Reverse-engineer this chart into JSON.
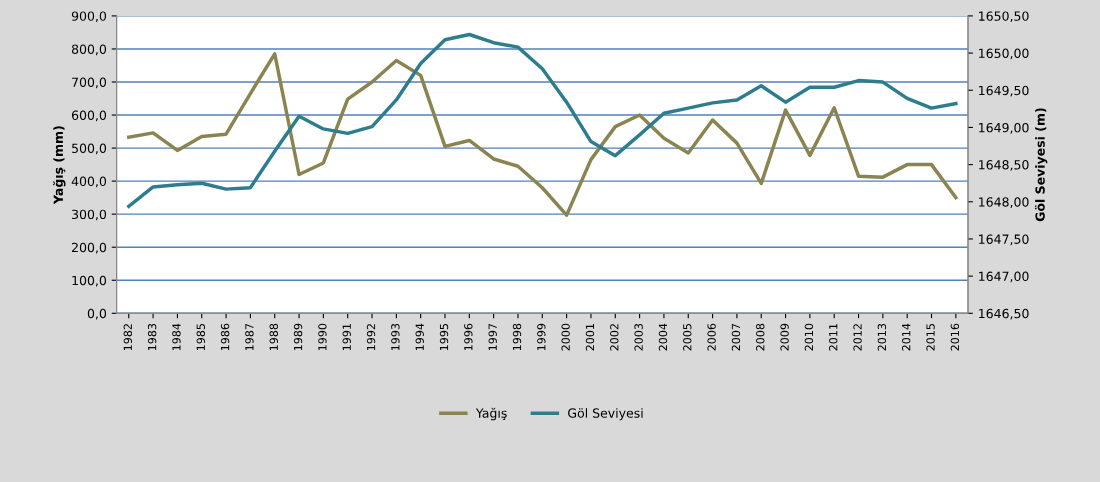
{
  "chart_data": {
    "type": "line",
    "categories": [
      "1982",
      "1983",
      "1984",
      "1985",
      "1986",
      "1987",
      "1988",
      "1989",
      "1990",
      "1991",
      "1992",
      "1993",
      "1994",
      "1995",
      "1996",
      "1997",
      "1998",
      "1999",
      "2000",
      "2001",
      "2002",
      "2003",
      "2004",
      "2005",
      "2006",
      "2007",
      "2008",
      "2009",
      "2010",
      "2011",
      "2012",
      "2013",
      "2014",
      "2015",
      "2016"
    ],
    "series": [
      {
        "name": "Yağış",
        "color": "#8a8450",
        "values": [
          533,
          546,
          493,
          535,
          542,
          665,
          785,
          420,
          455,
          648,
          700,
          765,
          720,
          505,
          523,
          467,
          445,
          380,
          297,
          465,
          565,
          600,
          530,
          485,
          585,
          515,
          393,
          615,
          478,
          622,
          415,
          412,
          450,
          450,
          350
        ]
      },
      {
        "name": "Göl Seviyesi",
        "color": "#2e7d8f",
        "axis": "y2",
        "values": [
          1647.94,
          1648.2,
          1648.23,
          1648.25,
          1648.17,
          1648.19,
          1648.68,
          1649.15,
          1648.98,
          1648.92,
          1649.01,
          1649.37,
          1649.86,
          1650.18,
          1650.25,
          1650.14,
          1650.08,
          1649.79,
          1649.34,
          1648.81,
          1648.62,
          1648.9,
          1649.19,
          1649.26,
          1649.33,
          1649.37,
          1649.56,
          1649.34,
          1649.54,
          1649.54,
          1649.63,
          1649.61,
          1649.39,
          1649.26,
          1649.32
        ]
      }
    ],
    "ylabel": "Yağış (mm)",
    "y2label": "Göl Seviyesi (m)",
    "ylim": [
      0,
      900
    ],
    "yticks": [
      {
        "value": 0,
        "label": "0,0"
      },
      {
        "value": 100,
        "label": "100,0"
      },
      {
        "value": 200,
        "label": "200,0"
      },
      {
        "value": 300,
        "label": "300,0"
      },
      {
        "value": 400,
        "label": "400,0"
      },
      {
        "value": 500,
        "label": "500,0"
      },
      {
        "value": 600,
        "label": "600,0"
      },
      {
        "value": 700,
        "label": "700,0"
      },
      {
        "value": 800,
        "label": "800,0"
      },
      {
        "value": 900,
        "label": "900,0"
      }
    ],
    "y2lim": [
      1646.5,
      1650.5
    ],
    "y2ticks": [
      {
        "value": 1646.5,
        "label": "1646,50"
      },
      {
        "value": 1647,
        "label": "1647,00"
      },
      {
        "value": 1647.5,
        "label": "1647,50"
      },
      {
        "value": 1648,
        "label": "1648,00"
      },
      {
        "value": 1648.5,
        "label": "1648,50"
      },
      {
        "value": 1649,
        "label": "1649,00"
      },
      {
        "value": 1649.5,
        "label": "1649,50"
      },
      {
        "value": 1650,
        "label": "1650,00"
      },
      {
        "value": 1650.5,
        "label": "1650,50"
      }
    ],
    "grid": "y",
    "legend": "bottom",
    "marker": "none",
    "line_style": "solid"
  }
}
